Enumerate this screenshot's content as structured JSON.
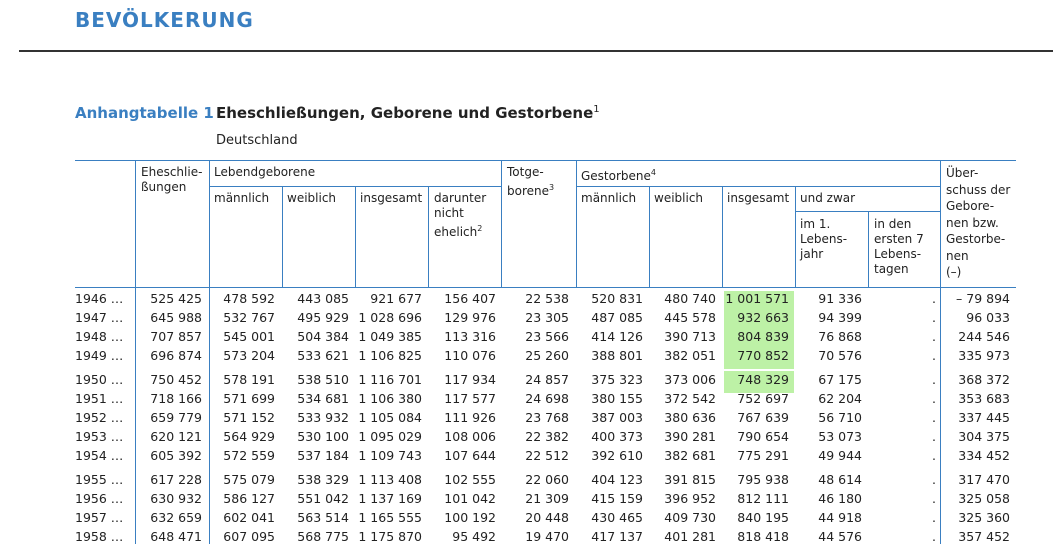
{
  "section_title": "BEVÖLKERUNG",
  "table_label": "Anhangtabelle 1",
  "table_title": "Eheschließungen, Geborene und Gestorbene",
  "table_title_footnote": "1",
  "table_subtitle": "Deutschland",
  "headers": {
    "marriages": [
      "Eheschlie-",
      "ßungen"
    ],
    "live_births": "Lebendgeborene",
    "lb_male": "männlich",
    "lb_female": "weiblich",
    "lb_total": "insgesamt",
    "lb_illegitimate": [
      "darunter",
      "nicht",
      "ehelich"
    ],
    "lb_illegitimate_fn": "2",
    "stillbirths": [
      "Totge-",
      "borene"
    ],
    "stillbirths_fn": "3",
    "deaths": "Gestorbene",
    "deaths_fn": "4",
    "d_male": "männlich",
    "d_female": "weiblich",
    "d_total": "insgesamt",
    "d_of_which": "und zwar",
    "d_first_year": [
      "im 1.",
      "Lebens-",
      "jahr"
    ],
    "d_first_week": [
      "in den",
      "ersten 7",
      "Lebens-",
      "tagen"
    ],
    "surplus": [
      "Über-",
      "schuss der",
      "Gebore-",
      "nen bzw.",
      "Gestorbe-",
      "nen",
      "(–)"
    ]
  },
  "highlight_color": "#bdf1a6",
  "rows": [
    {
      "year": "1946 …",
      "marriages": "525 425",
      "lb_male": "478 592",
      "lb_female": "443 085",
      "lb_total": "921 677",
      "lb_illeg": "156 407",
      "still": "22 538",
      "d_male": "520 831",
      "d_female": "480 740",
      "d_total": "1 001 571",
      "d_infant": "91 336",
      "d_week": ".",
      "surplus": "– 79 894",
      "highlight": true
    },
    {
      "year": "1947 …",
      "marriages": "645 988",
      "lb_male": "532 767",
      "lb_female": "495 929",
      "lb_total": "1 028 696",
      "lb_illeg": "129 976",
      "still": "23 305",
      "d_male": "487 085",
      "d_female": "445 578",
      "d_total": "932 663",
      "d_infant": "94 399",
      "d_week": ".",
      "surplus": "96 033",
      "highlight": true
    },
    {
      "year": "1948 …",
      "marriages": "707 857",
      "lb_male": "545 001",
      "lb_female": "504 384",
      "lb_total": "1 049 385",
      "lb_illeg": "113 316",
      "still": "23 566",
      "d_male": "414 126",
      "d_female": "390 713",
      "d_total": "804 839",
      "d_infant": "76 868",
      "d_week": ".",
      "surplus": "244 546",
      "highlight": true
    },
    {
      "year": "1949 …",
      "marriages": "696 874",
      "lb_male": "573 204",
      "lb_female": "533 621",
      "lb_total": "1 106 825",
      "lb_illeg": "110 076",
      "still": "25 260",
      "d_male": "388 801",
      "d_female": "382 051",
      "d_total": "770 852",
      "d_infant": "70 576",
      "d_week": ".",
      "surplus": "335 973",
      "highlight": true
    },
    {
      "year": "1950 …",
      "marriages": "750 452",
      "lb_male": "578 191",
      "lb_female": "538 510",
      "lb_total": "1 116 701",
      "lb_illeg": "117 934",
      "still": "24 857",
      "d_male": "375 323",
      "d_female": "373 006",
      "d_total": "748 329",
      "d_infant": "67 175",
      "d_week": ".",
      "surplus": "368 372",
      "highlight": true
    },
    {
      "year": "1951 …",
      "marriages": "718 166",
      "lb_male": "571 699",
      "lb_female": "534 681",
      "lb_total": "1 106 380",
      "lb_illeg": "117 577",
      "still": "24 698",
      "d_male": "380 155",
      "d_female": "372 542",
      "d_total": "752 697",
      "d_infant": "62 204",
      "d_week": ".",
      "surplus": "353 683",
      "highlight": false
    },
    {
      "year": "1952 …",
      "marriages": "659 779",
      "lb_male": "571 152",
      "lb_female": "533 932",
      "lb_total": "1 105 084",
      "lb_illeg": "111 926",
      "still": "23 768",
      "d_male": "387 003",
      "d_female": "380 636",
      "d_total": "767 639",
      "d_infant": "56 710",
      "d_week": ".",
      "surplus": "337 445",
      "highlight": false
    },
    {
      "year": "1953 …",
      "marriages": "620 121",
      "lb_male": "564 929",
      "lb_female": "530 100",
      "lb_total": "1 095 029",
      "lb_illeg": "108 006",
      "still": "22 382",
      "d_male": "400 373",
      "d_female": "390 281",
      "d_total": "790 654",
      "d_infant": "53 073",
      "d_week": ".",
      "surplus": "304 375",
      "highlight": false
    },
    {
      "year": "1954 …",
      "marriages": "605 392",
      "lb_male": "572 559",
      "lb_female": "537 184",
      "lb_total": "1 109 743",
      "lb_illeg": "107 644",
      "still": "22 512",
      "d_male": "392 610",
      "d_female": "382 681",
      "d_total": "775 291",
      "d_infant": "49 944",
      "d_week": ".",
      "surplus": "334 452",
      "highlight": false
    },
    {
      "year": "1955 …",
      "marriages": "617 228",
      "lb_male": "575 079",
      "lb_female": "538 329",
      "lb_total": "1 113 408",
      "lb_illeg": "102 555",
      "still": "22 060",
      "d_male": "404 123",
      "d_female": "391 815",
      "d_total": "795 938",
      "d_infant": "48 614",
      "d_week": ".",
      "surplus": "317 470",
      "highlight": false
    },
    {
      "year": "1956 …",
      "marriages": "630 932",
      "lb_male": "586 127",
      "lb_female": "551 042",
      "lb_total": "1 137 169",
      "lb_illeg": "101 042",
      "still": "21 309",
      "d_male": "415 159",
      "d_female": "396 952",
      "d_total": "812 111",
      "d_infant": "46 180",
      "d_week": ".",
      "surplus": "325 058",
      "highlight": false
    },
    {
      "year": "1957 …",
      "marriages": "632 659",
      "lb_male": "602 041",
      "lb_female": "563 514",
      "lb_total": "1 165 555",
      "lb_illeg": "100 192",
      "still": "20 448",
      "d_male": "430 465",
      "d_female": "409 730",
      "d_total": "840 195",
      "d_infant": "44 918",
      "d_week": ".",
      "surplus": "325 360",
      "highlight": false
    },
    {
      "year": "1958 …",
      "marriages": "648 471",
      "lb_male": "607 095",
      "lb_female": "568 775",
      "lb_total": "1 175 870",
      "lb_illeg": "95 492",
      "still": "19 470",
      "d_male": "417 137",
      "d_female": "401 281",
      "d_total": "818 418",
      "d_infant": "44 576",
      "d_week": ".",
      "surplus": "357 452",
      "highlight": false
    }
  ]
}
